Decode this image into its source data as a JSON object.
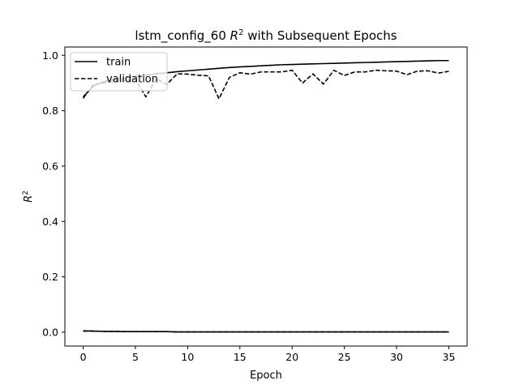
{
  "chart_data": {
    "type": "line",
    "title_prefix": "lstm_config_60 ",
    "title_math_base": "R",
    "title_math_sup": "2",
    "title_suffix": " with Subsequent Epochs",
    "xlabel": "Epoch",
    "ylabel_base": "R",
    "ylabel_sup": "2",
    "xlim": [
      -1.75,
      36.75
    ],
    "ylim": [
      -0.05,
      1.03
    ],
    "xticks": [
      0,
      5,
      10,
      15,
      20,
      25,
      30,
      35
    ],
    "yticks": [
      0.0,
      0.2,
      0.4,
      0.6,
      0.8,
      1.0
    ],
    "ytick_labels": [
      "0.0",
      "0.2",
      "0.4",
      "0.6",
      "0.8",
      "1.0"
    ],
    "grid": false,
    "legend_position": "top-left",
    "x": [
      0,
      1,
      2,
      3,
      4,
      5,
      6,
      7,
      8,
      9,
      10,
      11,
      12,
      13,
      14,
      15,
      16,
      17,
      18,
      19,
      20,
      21,
      22,
      23,
      24,
      25,
      26,
      27,
      28,
      29,
      30,
      31,
      32,
      33,
      34,
      35
    ],
    "series": [
      {
        "name": "train",
        "style": "solid",
        "color": "#000000",
        "values": [
          0.85,
          0.89,
          0.905,
          0.912,
          0.918,
          0.924,
          0.928,
          0.933,
          0.937,
          0.941,
          0.944,
          0.947,
          0.95,
          0.953,
          0.956,
          0.958,
          0.96,
          0.962,
          0.964,
          0.966,
          0.967,
          0.968,
          0.969,
          0.97,
          0.971,
          0.972,
          0.973,
          0.974,
          0.975,
          0.976,
          0.977,
          0.978,
          0.979,
          0.98,
          0.981,
          0.981
        ]
      },
      {
        "name": "validation",
        "style": "dashed",
        "color": "#000000",
        "values": [
          0.845,
          0.895,
          0.9,
          0.905,
          0.91,
          0.913,
          0.85,
          0.915,
          0.895,
          0.933,
          0.932,
          0.928,
          0.926,
          0.843,
          0.92,
          0.937,
          0.932,
          0.94,
          0.94,
          0.94,
          0.946,
          0.9,
          0.933,
          0.896,
          0.946,
          0.927,
          0.94,
          0.94,
          0.946,
          0.944,
          0.943,
          0.93,
          0.943,
          0.944,
          0.936,
          0.942
        ]
      },
      {
        "name": "",
        "style": "solid",
        "color": "#000000",
        "values": [
          0.005,
          0.004,
          0.003,
          0.003,
          0.002,
          0.002,
          0.002,
          0.002,
          0.002,
          0.001,
          0.001,
          0.001,
          0.001,
          0.001,
          0.001,
          0.001,
          0.001,
          0.001,
          0.001,
          0.001,
          0.001,
          0.001,
          0.001,
          0.001,
          0.001,
          0.001,
          0.001,
          0.001,
          0.001,
          0.001,
          0.001,
          0.001,
          0.001,
          0.001,
          0.001,
          0.001
        ]
      },
      {
        "name": "",
        "style": "dashed",
        "color": "#000000",
        "values": [
          0.004,
          0.004,
          0.003,
          0.003,
          0.002,
          0.002,
          0.002,
          0.002,
          0.002,
          0.001,
          0.001,
          0.001,
          0.001,
          0.001,
          0.001,
          0.001,
          0.001,
          0.001,
          0.001,
          0.001,
          0.001,
          0.001,
          0.001,
          0.001,
          0.001,
          0.001,
          0.001,
          0.001,
          0.001,
          0.001,
          0.001,
          0.001,
          0.001,
          0.001,
          0.001,
          0.001
        ]
      }
    ]
  }
}
